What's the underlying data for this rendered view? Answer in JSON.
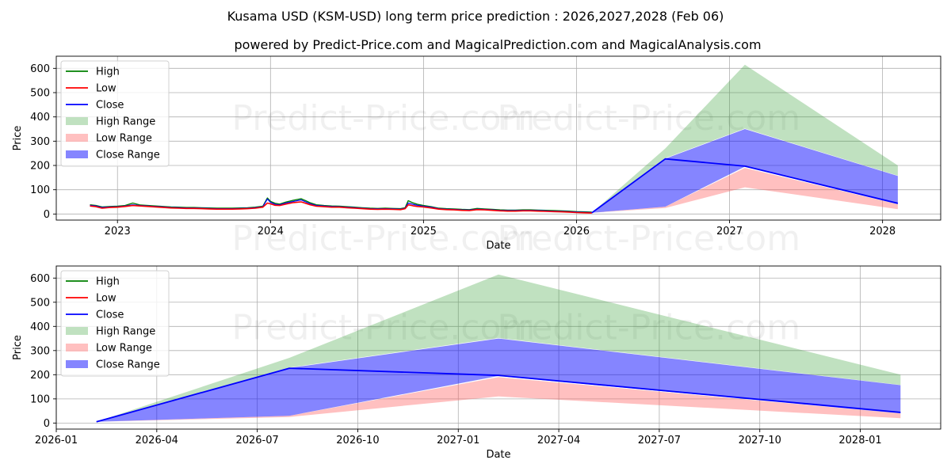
{
  "chart_data": {
    "type": "area",
    "title": "Kusama USD (KSM-USD) long term price prediction : 2026,2027,2028 (Feb 06)",
    "subtitle": "powered by Predict-Price.com and MagicalPrediction.com and MagicalAnalysis.com",
    "watermark": "Predict-Price.com",
    "colors": {
      "high": "#008000",
      "low": "#ff0000",
      "close": "#0000ff",
      "high_range": "#2e9b2e",
      "low_range": "#ff5a5a",
      "close_range": "#0000ff",
      "grid": "#b0b0b0"
    },
    "legend": {
      "placement": "top-left",
      "entries": [
        "High",
        "Low",
        "Close",
        "High Range",
        "Low Range",
        "Close Range"
      ]
    },
    "history": {
      "x": [
        2022.82,
        2022.86,
        2022.9,
        2022.95,
        2023.0,
        2023.05,
        2023.1,
        2023.15,
        2023.2,
        2023.25,
        2023.3,
        2023.35,
        2023.4,
        2023.45,
        2023.5,
        2023.55,
        2023.6,
        2023.65,
        2023.7,
        2023.75,
        2023.8,
        2023.85,
        2023.9,
        2023.95,
        2023.98,
        2024.0,
        2024.03,
        2024.06,
        2024.1,
        2024.15,
        2024.2,
        2024.23,
        2024.26,
        2024.3,
        2024.35,
        2024.4,
        2024.45,
        2024.5,
        2024.55,
        2024.6,
        2024.65,
        2024.7,
        2024.75,
        2024.8,
        2024.85,
        2024.88,
        2024.9,
        2024.93,
        2024.96,
        2025.0,
        2025.05,
        2025.1,
        2025.15,
        2025.2,
        2025.25,
        2025.3,
        2025.35,
        2025.4,
        2025.45,
        2025.5,
        2025.55,
        2025.6,
        2025.65,
        2025.7,
        2025.75,
        2025.8,
        2025.85,
        2025.9,
        2025.95,
        2026.0,
        2026.05,
        2026.1
      ],
      "close": [
        36,
        33,
        27,
        29,
        30,
        33,
        38,
        35,
        33,
        31,
        29,
        27,
        26,
        25,
        25,
        24,
        23,
        22,
        22,
        22,
        23,
        24,
        26,
        30,
        62,
        48,
        40,
        38,
        45,
        52,
        58,
        50,
        42,
        35,
        33,
        31,
        30,
        28,
        26,
        24,
        22,
        21,
        22,
        21,
        20,
        24,
        45,
        40,
        36,
        32,
        28,
        22,
        20,
        19,
        17,
        16,
        20,
        19,
        17,
        15,
        14,
        14,
        15,
        15,
        14,
        13,
        12,
        11,
        10,
        8,
        7,
        6
      ],
      "high": [
        38,
        35,
        29,
        31,
        32,
        35,
        45,
        37,
        35,
        33,
        31,
        29,
        28,
        27,
        27,
        26,
        25,
        24,
        24,
        24,
        25,
        26,
        28,
        32,
        66,
        52,
        44,
        41,
        49,
        57,
        63,
        55,
        46,
        38,
        35,
        33,
        32,
        30,
        28,
        26,
        24,
        23,
        24,
        23,
        22,
        26,
        55,
        46,
        40,
        35,
        30,
        24,
        22,
        21,
        19,
        18,
        23,
        21,
        19,
        17,
        16,
        16,
        17,
        17,
        16,
        15,
        14,
        13,
        12,
        10,
        9,
        8
      ],
      "low": [
        33,
        30,
        24,
        27,
        28,
        31,
        35,
        33,
        31,
        29,
        27,
        25,
        24,
        23,
        23,
        22,
        21,
        20,
        20,
        20,
        21,
        22,
        24,
        28,
        45,
        42,
        36,
        35,
        41,
        47,
        50,
        44,
        38,
        32,
        30,
        28,
        28,
        26,
        24,
        22,
        20,
        19,
        20,
        19,
        18,
        22,
        38,
        34,
        31,
        29,
        25,
        20,
        18,
        17,
        15,
        14,
        18,
        17,
        15,
        13,
        12,
        12,
        13,
        13,
        12,
        11,
        10,
        9,
        8,
        6,
        5,
        4
      ]
    },
    "forecast": {
      "x": [
        2026.1,
        2026.58,
        2027.1,
        2028.1
      ],
      "high": [
        5,
        270,
        615,
        200
      ],
      "high_low_edge": [
        5,
        230,
        352,
        158
      ],
      "close_high_edge": [
        5,
        228,
        350,
        157
      ],
      "close": [
        5,
        227,
        197,
        44
      ],
      "close_low_edge": [
        5,
        30,
        195,
        40
      ],
      "low_high_edge": [
        5,
        30,
        190,
        40
      ],
      "low": [
        5,
        25,
        110,
        20
      ]
    },
    "top_panel": {
      "xlim": [
        2022.6,
        2028.38
      ],
      "ylim": [
        -25,
        650
      ],
      "x_ticks": [
        2023,
        2024,
        2025,
        2026,
        2027,
        2028
      ],
      "x_tick_labels": [
        "2023",
        "2024",
        "2025",
        "2026",
        "2027",
        "2028"
      ],
      "y_ticks": [
        0,
        100,
        200,
        300,
        400,
        500,
        600
      ],
      "y_tick_labels": [
        "0",
        "100",
        "200",
        "300",
        "400",
        "500",
        "600"
      ],
      "xlabel": "Date",
      "ylabel": "Price",
      "grid": true
    },
    "bottom_panel": {
      "xlim": [
        2026.0,
        2028.2
      ],
      "ylim": [
        -25,
        650
      ],
      "x_ticks": [
        2026.0,
        2026.25,
        2026.5,
        2026.75,
        2027.0,
        2027.25,
        2027.5,
        2027.75,
        2028.0
      ],
      "x_tick_labels": [
        "2026-01",
        "2026-04",
        "2026-07",
        "2026-10",
        "2027-01",
        "2027-04",
        "2027-07",
        "2027-10",
        "2028-01"
      ],
      "y_ticks": [
        0,
        100,
        200,
        300,
        400,
        500,
        600
      ],
      "y_tick_labels": [
        "0",
        "100",
        "200",
        "300",
        "400",
        "500",
        "600"
      ],
      "xlabel": "Date",
      "ylabel": "Price",
      "grid": true
    }
  }
}
